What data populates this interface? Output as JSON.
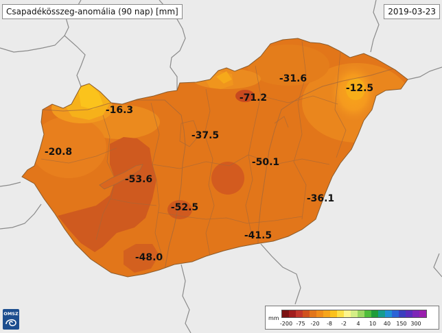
{
  "title": "Csapadékösszeg-anomália (90 nap) [mm]",
  "date": "2019-03-23",
  "logo_text": "OMSZ",
  "legend": {
    "unit": "mm",
    "colors": [
      "#7a1212",
      "#a11d1d",
      "#c2362b",
      "#d0521e",
      "#e2761a",
      "#f08d1a",
      "#f7a51a",
      "#fbc11c",
      "#fde047",
      "#fdf58d",
      "#d4ee86",
      "#9ad661",
      "#4fbd3b",
      "#1f9c3a",
      "#159c8e",
      "#1f8fd4",
      "#2b63d6",
      "#3b3fbf",
      "#5a2ebc",
      "#7d27b7",
      "#9a1fae"
    ],
    "ticks": [
      "-200",
      "-75",
      "-20",
      "-8",
      "-2",
      "4",
      "10",
      "40",
      "150",
      "300"
    ]
  },
  "values": [
    {
      "id": "nw-rabakoz",
      "text": "-16.3"
    },
    {
      "id": "west",
      "text": "-20.8"
    },
    {
      "id": "balaton-north",
      "text": "-53.6"
    },
    {
      "id": "budapest-area",
      "text": "-37.5"
    },
    {
      "id": "matra",
      "text": "-71.2"
    },
    {
      "id": "borsod",
      "text": "-31.6"
    },
    {
      "id": "nyirseg",
      "text": "-12.5"
    },
    {
      "id": "tisza-central",
      "text": "-50.1"
    },
    {
      "id": "bekes",
      "text": "-36.1"
    },
    {
      "id": "kiskunsag",
      "text": "-52.5"
    },
    {
      "id": "csongrad",
      "text": "-41.5"
    },
    {
      "id": "baranya",
      "text": "-48.0"
    }
  ]
}
